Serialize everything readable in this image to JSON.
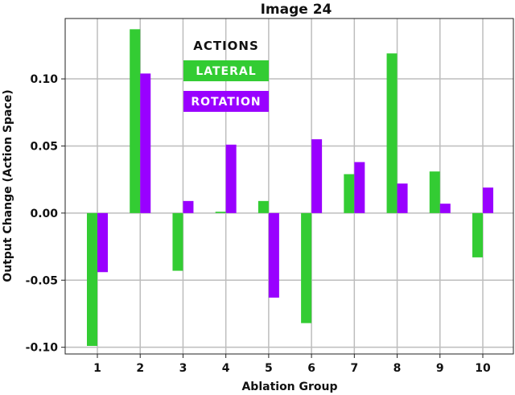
{
  "chart_data": {
    "type": "bar",
    "title": "Image 24",
    "xlabel": "Ablation Group",
    "ylabel": "Output Change (Action Space)",
    "categories": [
      "1",
      "2",
      "3",
      "4",
      "5",
      "6",
      "7",
      "8",
      "9",
      "10"
    ],
    "series": [
      {
        "name": "LATERAL",
        "color": "#33cc33",
        "values": [
          -0.099,
          0.137,
          -0.043,
          0.001,
          0.009,
          -0.082,
          0.029,
          0.119,
          0.031,
          -0.033
        ]
      },
      {
        "name": "ROTATION",
        "color": "#9900ff",
        "values": [
          -0.044,
          0.104,
          0.009,
          0.051,
          -0.063,
          0.055,
          0.038,
          0.022,
          0.007,
          0.019
        ]
      }
    ],
    "ylim": [
      -0.105,
      0.145
    ],
    "yticks": [
      -0.1,
      -0.05,
      0.0,
      0.05,
      0.1
    ],
    "ytick_labels": [
      "-0.10",
      "-0.05",
      "0.00",
      "0.05",
      "0.10"
    ],
    "grid": true,
    "legend": {
      "title": "ACTIONS",
      "position": "top-left"
    }
  }
}
